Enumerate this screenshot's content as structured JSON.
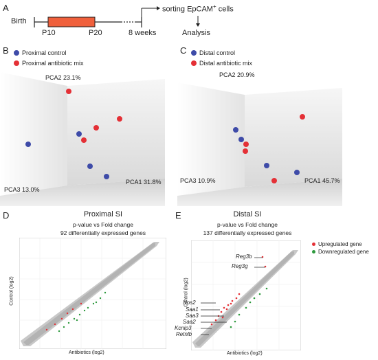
{
  "panel_a": {
    "letter": "A",
    "birth": "Birth",
    "p10": "P10",
    "p20": "P20",
    "weeks": "8 weeks",
    "sorting": "sorting EpCAM",
    "sorting_sup": "+",
    "sorting_tail": " cells",
    "analysis": "Analysis",
    "bar_color": "#f0603c"
  },
  "panel_b": {
    "letter": "B",
    "legend": [
      {
        "label": "Proximal control",
        "color": "#3e4ba8"
      },
      {
        "label": "Proximal antibiotic mix",
        "color": "#e43036"
      }
    ],
    "axes": {
      "pca1": "PCA1 31.8%",
      "pca2": "PCA2 23.1%",
      "pca3": "PCA3 13.0%"
    }
  },
  "panel_c": {
    "letter": "C",
    "legend": [
      {
        "label": "Distal control",
        "color": "#3e4ba8"
      },
      {
        "label": "Distal antibiotic mix",
        "color": "#e43036"
      }
    ],
    "axes": {
      "pca1": "PCA1 45.7%",
      "pca2": "PCA2 20.9%",
      "pca3": "PCA3 10.9%"
    }
  },
  "panel_d": {
    "letter": "D",
    "title": "Proximal SI",
    "subtitle": "p-value vs Fold change",
    "subtitle2": "92 differentially expressed genes",
    "xlabel": "Antibiotics (log2)",
    "ylabel": "Control (log2)"
  },
  "panel_e": {
    "letter": "E",
    "title": "Distal SI",
    "subtitle": "p-value vs Fold change",
    "subtitle2": "137 differentially expressed genes",
    "xlabel": "Antibiotics (log2)",
    "ylabel": "Control (log2)",
    "genes": [
      "Reg3b",
      "Reg3g",
      "Nos2",
      "Saa1",
      "Saa3",
      "Saa2",
      "Kcnip3",
      "Retnlb"
    ]
  },
  "legend_de": [
    {
      "label": "Upregulated gene",
      "color": "#e43036"
    },
    {
      "label": "Downregulated gene",
      "color": "#2e9a3e"
    }
  ]
}
